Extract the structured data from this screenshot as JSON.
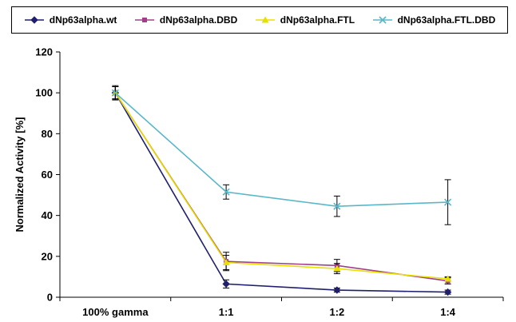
{
  "chart_data": {
    "type": "line",
    "categories": [
      "100% gamma",
      "1:1",
      "1:2",
      "1:4"
    ],
    "ylabel": "Normalized Activity [%]",
    "xlabel": "",
    "ylim": [
      0,
      120
    ],
    "yticks": [
      0,
      20,
      40,
      60,
      80,
      100,
      120
    ],
    "grid": false,
    "legend_position": "top",
    "series": [
      {
        "name": "dNp63alpha.wt",
        "color": "#1f1f6e",
        "marker": "diamond",
        "values": [
          100,
          6.5,
          3.5,
          2.5
        ],
        "errors": [
          3,
          2,
          1,
          1
        ]
      },
      {
        "name": "dNp63alpha.DBD",
        "color": "#a0408a",
        "marker": "square",
        "values": [
          100,
          17.5,
          15.5,
          8
        ],
        "errors": [
          3,
          4.5,
          3,
          1.5
        ]
      },
      {
        "name": "dNp63alpha.FTL",
        "color": "#e8e000",
        "marker": "triangle",
        "values": [
          100,
          17,
          14,
          9
        ],
        "errors": [
          3,
          3.5,
          2.5,
          1
        ]
      },
      {
        "name": "dNp63alpha.FTL.DBD",
        "color": "#5ab7c8",
        "marker": "x",
        "values": [
          100,
          51.5,
          44.5,
          46.5
        ],
        "errors": [
          3.5,
          3.5,
          5,
          11
        ]
      }
    ]
  }
}
